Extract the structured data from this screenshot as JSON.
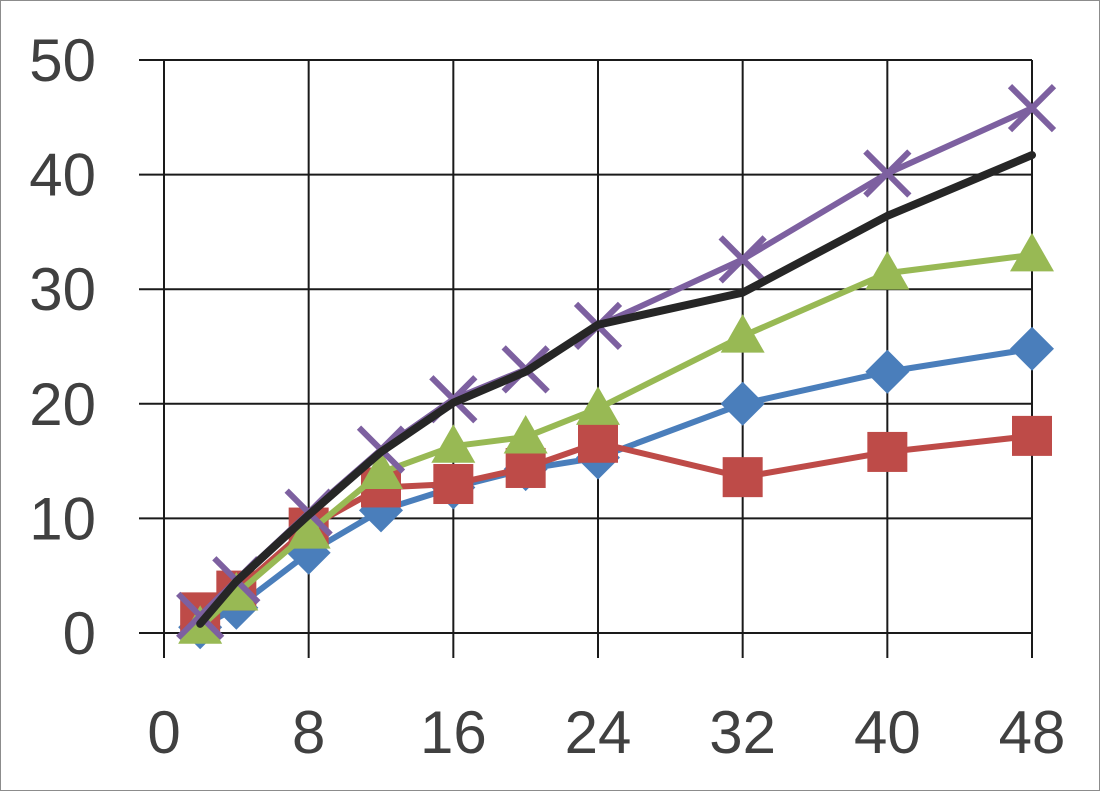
{
  "chart_data": {
    "type": "line",
    "title": "",
    "xlabel": "",
    "ylabel": "",
    "xlim": [
      0,
      48
    ],
    "ylim": [
      0,
      50
    ],
    "x_ticks": [
      0,
      8,
      16,
      24,
      32,
      40,
      48
    ],
    "y_ticks": [
      0,
      10,
      20,
      30,
      40,
      50
    ],
    "x_tick_labels": [
      "0",
      "8",
      "16",
      "24",
      "32",
      "40",
      "48"
    ],
    "y_tick_labels": [
      "0",
      "10",
      "20",
      "30",
      "40",
      "50"
    ],
    "grid": true,
    "legend": "none",
    "series": [
      {
        "color": "#4a7ebb",
        "marker": "diamond",
        "x": [
          2,
          4,
          8,
          12,
          16,
          20,
          24,
          32,
          40,
          48
        ],
        "y": [
          0.5,
          2.2,
          7.0,
          10.7,
          12.7,
          14.3,
          15.3,
          20.0,
          22.8,
          24.8
        ]
      },
      {
        "color": "#be4b48",
        "marker": "square",
        "x": [
          2,
          4,
          8,
          12,
          16,
          20,
          24,
          32,
          40,
          48
        ],
        "y": [
          1.8,
          3.7,
          9.2,
          12.7,
          13.0,
          14.4,
          16.6,
          13.6,
          15.8,
          17.2
        ]
      },
      {
        "color": "#98b954",
        "marker": "triangle",
        "x": [
          2,
          4,
          8,
          12,
          16,
          20,
          24,
          32,
          40,
          48
        ],
        "y": [
          0.5,
          3.4,
          8.8,
          14.0,
          16.3,
          17.1,
          19.6,
          25.9,
          31.4,
          33.0
        ]
      },
      {
        "color": "#7d60a0",
        "marker": "x",
        "x": [
          2,
          4,
          8,
          12,
          16,
          20,
          24,
          32,
          40,
          48
        ],
        "y": [
          1.5,
          4.6,
          10.5,
          16.0,
          20.4,
          23.0,
          26.8,
          32.6,
          40.1,
          45.8
        ]
      },
      {
        "color": "#262626",
        "marker": "none",
        "x": [
          2,
          4,
          8,
          12,
          16,
          20,
          24,
          32,
          40,
          48
        ],
        "y": [
          0.8,
          4.5,
          10.3,
          15.8,
          20.1,
          22.8,
          26.9,
          29.7,
          36.4,
          41.7
        ]
      }
    ]
  }
}
